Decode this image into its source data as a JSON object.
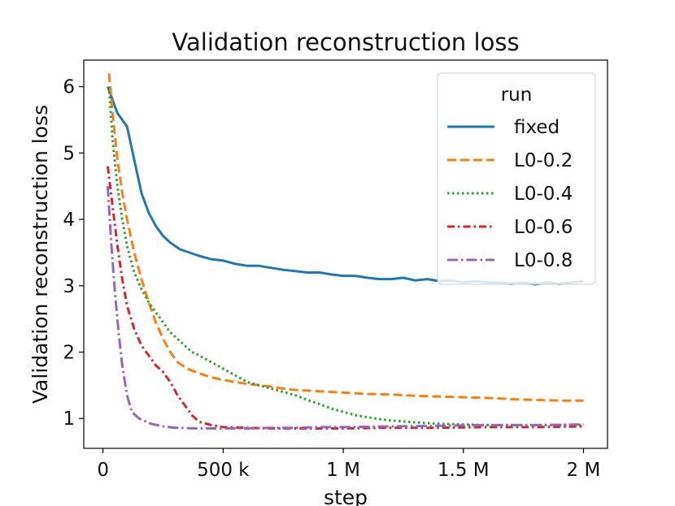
{
  "chart_data": {
    "type": "line",
    "title": "Validation reconstruction loss",
    "xlabel": "step",
    "ylabel": "Validation reconstruction loss",
    "xlim": [
      -80000,
      2100000
    ],
    "ylim": [
      0.55,
      6.4
    ],
    "xticks": [
      {
        "value": 0,
        "label": "0"
      },
      {
        "value": 500000,
        "label": "500 k"
      },
      {
        "value": 1000000,
        "label": "1 M"
      },
      {
        "value": 1500000,
        "label": "1.5 M"
      },
      {
        "value": 2000000,
        "label": "2 M"
      }
    ],
    "yticks": [
      {
        "value": 1,
        "label": "1"
      },
      {
        "value": 2,
        "label": "2"
      },
      {
        "value": 3,
        "label": "3"
      },
      {
        "value": 4,
        "label": "4"
      },
      {
        "value": 5,
        "label": "5"
      },
      {
        "value": 6,
        "label": "6"
      }
    ],
    "legend": {
      "title": "run",
      "position": "top-right"
    },
    "series": [
      {
        "name": "fixed",
        "color": "#1f77b4",
        "dash": "solid",
        "points": [
          [
            20000,
            6.0
          ],
          [
            40000,
            5.8
          ],
          [
            60000,
            5.6
          ],
          [
            80000,
            5.5
          ],
          [
            100000,
            5.4
          ],
          [
            130000,
            4.9
          ],
          [
            160000,
            4.4
          ],
          [
            190000,
            4.1
          ],
          [
            220000,
            3.9
          ],
          [
            250000,
            3.75
          ],
          [
            280000,
            3.65
          ],
          [
            320000,
            3.55
          ],
          [
            360000,
            3.5
          ],
          [
            400000,
            3.45
          ],
          [
            450000,
            3.4
          ],
          [
            500000,
            3.38
          ],
          [
            550000,
            3.33
          ],
          [
            600000,
            3.3
          ],
          [
            650000,
            3.3
          ],
          [
            700000,
            3.27
          ],
          [
            750000,
            3.24
          ],
          [
            800000,
            3.22
          ],
          [
            850000,
            3.2
          ],
          [
            900000,
            3.2
          ],
          [
            950000,
            3.17
          ],
          [
            1000000,
            3.15
          ],
          [
            1050000,
            3.15
          ],
          [
            1100000,
            3.12
          ],
          [
            1150000,
            3.1
          ],
          [
            1200000,
            3.1
          ],
          [
            1250000,
            3.12
          ],
          [
            1300000,
            3.08
          ],
          [
            1350000,
            3.1
          ],
          [
            1400000,
            3.07
          ],
          [
            1450000,
            3.08
          ],
          [
            1500000,
            3.05
          ],
          [
            1550000,
            3.07
          ],
          [
            1600000,
            3.05
          ],
          [
            1650000,
            3.05
          ],
          [
            1700000,
            3.03
          ],
          [
            1750000,
            3.05
          ],
          [
            1800000,
            3.02
          ],
          [
            1850000,
            3.05
          ],
          [
            1900000,
            3.03
          ],
          [
            1950000,
            3.05
          ],
          [
            2000000,
            3.07
          ]
        ]
      },
      {
        "name": "L0-0.2",
        "color": "#ff7f0e",
        "dash": "dashed",
        "points": [
          [
            25000,
            6.2
          ],
          [
            40000,
            5.6
          ],
          [
            60000,
            4.9
          ],
          [
            80000,
            4.4
          ],
          [
            100000,
            4.0
          ],
          [
            130000,
            3.5
          ],
          [
            160000,
            3.1
          ],
          [
            190000,
            2.75
          ],
          [
            220000,
            2.45
          ],
          [
            250000,
            2.2
          ],
          [
            280000,
            2.0
          ],
          [
            310000,
            1.85
          ],
          [
            350000,
            1.75
          ],
          [
            400000,
            1.68
          ],
          [
            450000,
            1.62
          ],
          [
            500000,
            1.58
          ],
          [
            550000,
            1.55
          ],
          [
            600000,
            1.52
          ],
          [
            650000,
            1.5
          ],
          [
            700000,
            1.48
          ],
          [
            750000,
            1.45
          ],
          [
            800000,
            1.43
          ],
          [
            850000,
            1.42
          ],
          [
            900000,
            1.41
          ],
          [
            1000000,
            1.39
          ],
          [
            1100000,
            1.37
          ],
          [
            1200000,
            1.36
          ],
          [
            1300000,
            1.34
          ],
          [
            1400000,
            1.33
          ],
          [
            1500000,
            1.32
          ],
          [
            1600000,
            1.31
          ],
          [
            1700000,
            1.29
          ],
          [
            1800000,
            1.28
          ],
          [
            1900000,
            1.27
          ],
          [
            2000000,
            1.27
          ]
        ]
      },
      {
        "name": "L0-0.4",
        "color": "#2ca02c",
        "dash": "dotted",
        "points": [
          [
            25000,
            6.0
          ],
          [
            40000,
            5.2
          ],
          [
            60000,
            4.5
          ],
          [
            80000,
            4.0
          ],
          [
            100000,
            3.6
          ],
          [
            130000,
            3.2
          ],
          [
            160000,
            2.95
          ],
          [
            190000,
            2.75
          ],
          [
            220000,
            2.6
          ],
          [
            250000,
            2.45
          ],
          [
            280000,
            2.3
          ],
          [
            310000,
            2.2
          ],
          [
            340000,
            2.1
          ],
          [
            370000,
            2.0
          ],
          [
            400000,
            1.95
          ],
          [
            450000,
            1.85
          ],
          [
            500000,
            1.75
          ],
          [
            550000,
            1.65
          ],
          [
            600000,
            1.55
          ],
          [
            650000,
            1.5
          ],
          [
            700000,
            1.45
          ],
          [
            750000,
            1.4
          ],
          [
            800000,
            1.35
          ],
          [
            850000,
            1.28
          ],
          [
            900000,
            1.22
          ],
          [
            950000,
            1.15
          ],
          [
            1000000,
            1.1
          ],
          [
            1050000,
            1.05
          ],
          [
            1100000,
            1.02
          ],
          [
            1150000,
            0.99
          ],
          [
            1200000,
            0.97
          ],
          [
            1300000,
            0.94
          ],
          [
            1400000,
            0.92
          ],
          [
            1500000,
            0.91
          ],
          [
            1600000,
            0.9
          ],
          [
            1700000,
            0.9
          ],
          [
            1800000,
            0.9
          ],
          [
            1900000,
            0.9
          ],
          [
            2000000,
            0.9
          ]
        ]
      },
      {
        "name": "L0-0.6",
        "color": "#d62728",
        "dash": "dashdot",
        "points": [
          [
            20000,
            4.8
          ],
          [
            40000,
            4.2
          ],
          [
            60000,
            3.6
          ],
          [
            80000,
            3.1
          ],
          [
            100000,
            2.7
          ],
          [
            130000,
            2.35
          ],
          [
            160000,
            2.1
          ],
          [
            190000,
            1.95
          ],
          [
            220000,
            1.8
          ],
          [
            250000,
            1.7
          ],
          [
            280000,
            1.55
          ],
          [
            310000,
            1.35
          ],
          [
            340000,
            1.2
          ],
          [
            370000,
            1.05
          ],
          [
            400000,
            0.95
          ],
          [
            450000,
            0.9
          ],
          [
            500000,
            0.87
          ],
          [
            600000,
            0.86
          ],
          [
            700000,
            0.85
          ],
          [
            800000,
            0.85
          ],
          [
            900000,
            0.85
          ],
          [
            1000000,
            0.85
          ],
          [
            1200000,
            0.86
          ],
          [
            1400000,
            0.86
          ],
          [
            1600000,
            0.87
          ],
          [
            1800000,
            0.87
          ],
          [
            2000000,
            0.88
          ]
        ]
      },
      {
        "name": "L0-0.8",
        "color": "#9467bd",
        "dash": "dashdot2",
        "points": [
          [
            20000,
            4.5
          ],
          [
            35000,
            3.6
          ],
          [
            50000,
            2.9
          ],
          [
            65000,
            2.3
          ],
          [
            80000,
            1.8
          ],
          [
            100000,
            1.35
          ],
          [
            120000,
            1.1
          ],
          [
            150000,
            1.0
          ],
          [
            200000,
            0.92
          ],
          [
            250000,
            0.88
          ],
          [
            300000,
            0.86
          ],
          [
            400000,
            0.85
          ],
          [
            500000,
            0.85
          ],
          [
            600000,
            0.85
          ],
          [
            700000,
            0.86
          ],
          [
            800000,
            0.86
          ],
          [
            900000,
            0.87
          ],
          [
            1000000,
            0.87
          ],
          [
            1200000,
            0.88
          ],
          [
            1400000,
            0.89
          ],
          [
            1600000,
            0.9
          ],
          [
            1800000,
            0.9
          ],
          [
            2000000,
            0.91
          ]
        ]
      }
    ]
  }
}
